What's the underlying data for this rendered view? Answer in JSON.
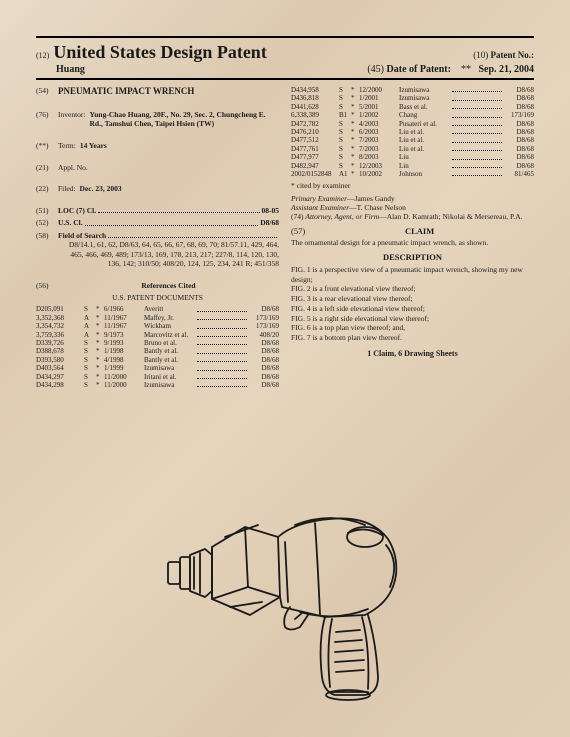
{
  "header": {
    "code12": "(12)",
    "title": "United States Design Patent",
    "applicant": "Huang",
    "code10": "(10)",
    "patentNoLabel": "Patent No.:",
    "code45": "(45)",
    "dateLabel": "Date of Patent:",
    "dateStar": "**",
    "dateValue": "Sep. 21, 2004"
  },
  "leftCol": {
    "f54": {
      "code": "(54)",
      "label": "PNEUMATIC IMPACT WRENCH"
    },
    "f76": {
      "code": "(76)",
      "label": "Inventor:",
      "content": "Yung-Chao Huang, 20F., No. 29, Sec. 2, Chungcheng E. Rd., Tamshui Chen, Taipei Hsien (TW)"
    },
    "fterm": {
      "code": "(**)",
      "label": "Term:",
      "content": "14 Years"
    },
    "f21": {
      "code": "(21)",
      "label": "Appl. No."
    },
    "f22": {
      "code": "(22)",
      "label": "Filed:",
      "content": "Dec. 23, 2003"
    },
    "f51": {
      "code": "(51)",
      "label": "LOC (7) Cl.",
      "content": "08-05"
    },
    "f52": {
      "code": "(52)",
      "label": "U.S. Cl.",
      "content": "D8/68"
    },
    "f58": {
      "code": "(58)",
      "label": "Field of Search",
      "content": "D8/14.1, 61, 62, D8/63, 64, 65, 66, 67, 68, 69, 70; 81/57.11, 429, 464, 465, 466, 469, 489; 173/13, 169, 178, 213, 217; 227/8, 114, 120, 130, 136, 142; 310/50; 408/20, 124, 125, 234, 241 R; 451/358"
    },
    "f56": {
      "code": "(56)",
      "label": "References Cited"
    },
    "refsSub": "U.S. PATENT DOCUMENTS"
  },
  "refsLeft": [
    {
      "n": "D205,091",
      "t": "S",
      "s": "*",
      "d": "6/1966",
      "name": "Averitt",
      "c": "D8/68"
    },
    {
      "n": "3,352,368",
      "t": "A",
      "s": "*",
      "d": "11/1967",
      "name": "Maffey, Jr.",
      "c": "173/169"
    },
    {
      "n": "3,354,732",
      "t": "A",
      "s": "*",
      "d": "11/1967",
      "name": "Wickham",
      "c": "173/169"
    },
    {
      "n": "3,759,336",
      "t": "A",
      "s": "*",
      "d": "9/1973",
      "name": "Marcovitz et al.",
      "c": "408/20"
    },
    {
      "n": "D339,726",
      "t": "S",
      "s": "*",
      "d": "9/1993",
      "name": "Bruno et al.",
      "c": "D8/68"
    },
    {
      "n": "D388,678",
      "t": "S",
      "s": "*",
      "d": "1/1998",
      "name": "Bantly et al.",
      "c": "D8/68"
    },
    {
      "n": "D393,580",
      "t": "S",
      "s": "*",
      "d": "4/1998",
      "name": "Bantly et al.",
      "c": "D8/68"
    },
    {
      "n": "D403,564",
      "t": "S",
      "s": "*",
      "d": "1/1999",
      "name": "Izumisawa",
      "c": "D8/68"
    },
    {
      "n": "D434,297",
      "t": "S",
      "s": "*",
      "d": "11/2000",
      "name": "Iritani et al.",
      "c": "D8/68"
    },
    {
      "n": "D434,298",
      "t": "S",
      "s": "*",
      "d": "11/2000",
      "name": "Izumisawa",
      "c": "D8/68"
    }
  ],
  "refsRight": [
    {
      "n": "D434,958",
      "t": "S",
      "s": "*",
      "d": "12/2000",
      "name": "Izumisawa",
      "c": "D8/68"
    },
    {
      "n": "D436,818",
      "t": "S",
      "s": "*",
      "d": "1/2001",
      "name": "Izumisawa",
      "c": "D8/68"
    },
    {
      "n": "D441,628",
      "t": "S",
      "s": "*",
      "d": "5/2001",
      "name": "Bass et al.",
      "c": "D8/68"
    },
    {
      "n": "6,338,389",
      "t": "B1",
      "s": "*",
      "d": "1/2002",
      "name": "Chang",
      "c": "173/169"
    },
    {
      "n": "D472,782",
      "t": "S",
      "s": "*",
      "d": "4/2003",
      "name": "Pusateri et al.",
      "c": "D8/68"
    },
    {
      "n": "D476,210",
      "t": "S",
      "s": "*",
      "d": "6/2003",
      "name": "Liu et al.",
      "c": "D8/68"
    },
    {
      "n": "D477,512",
      "t": "S",
      "s": "*",
      "d": "7/2003",
      "name": "Liu et al.",
      "c": "D8/68"
    },
    {
      "n": "D477,761",
      "t": "S",
      "s": "*",
      "d": "7/2003",
      "name": "Liu et al.",
      "c": "D8/68"
    },
    {
      "n": "D477,977",
      "t": "S",
      "s": "*",
      "d": "8/2003",
      "name": "Liu",
      "c": "D8/68"
    },
    {
      "n": "D482,947",
      "t": "S",
      "s": "*",
      "d": "12/2003",
      "name": "Lin",
      "c": "D8/68"
    },
    {
      "n": "2002/0152848",
      "t": "A1",
      "s": "*",
      "d": "10/2002",
      "name": "Johnson",
      "c": "81/465"
    }
  ],
  "rightCol": {
    "cited": "* cited by examiner",
    "primary": {
      "label": "Primary Examiner",
      "val": "—James Gandy"
    },
    "assistant": {
      "label": "Assistant Examiner",
      "val": "—T. Chase Nelson"
    },
    "attorney": {
      "code": "(74)",
      "label": "Attorney, Agent, or Firm",
      "val": "—Alan D. Kamrath; Nikolai & Mersereau, P.A."
    },
    "s57": {
      "code": "(57)",
      "label": "CLAIM"
    },
    "claimText": "The ornamental design for a pneumatic impact wrench, as shown.",
    "descLabel": "DESCRIPTION",
    "figs": [
      "FIG. 1 is a perspective view of a pneumatic impact wrench, showing my new design;",
      "FIG. 2 is a front elevational view thereof;",
      "FIG. 3 is a rear elevational view thereof;",
      "FIG. 4 is a left side elevational view thereof;",
      "FIG. 5 is a right side elevational view thereof;",
      "FIG. 6 is a top plan view thereof; and,",
      "FIG. 7 is a bottom plan view thereof."
    ],
    "claimCount": "1 Claim, 6 Drawing Sheets"
  }
}
